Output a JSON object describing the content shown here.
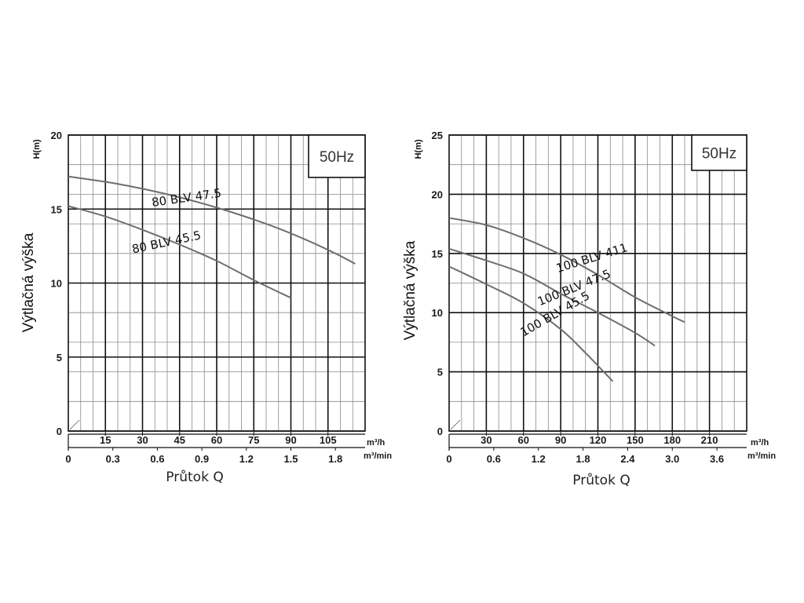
{
  "chart_data": [
    {
      "type": "line",
      "frequency_label": "50Hz",
      "ylabel": "Výtlačná výška",
      "ylabel_short": "H(m)",
      "xlabel": "Průtok Q",
      "x_unit_primary": "m³/h",
      "x_unit_secondary": "m³/min",
      "ylim": [
        0,
        20
      ],
      "y_ticks": [
        "0",
        "5",
        "10",
        "15",
        "20"
      ],
      "xlim_m3h": [
        0,
        120
      ],
      "x_ticks_m3h": [
        {
          "value": 15,
          "label": "15"
        },
        {
          "value": 30,
          "label": "30"
        },
        {
          "value": 45,
          "label": "45"
        },
        {
          "value": 60,
          "label": "60"
        },
        {
          "value": 75,
          "label": "75"
        },
        {
          "value": 90,
          "label": "90"
        },
        {
          "value": 105,
          "label": "105"
        }
      ],
      "x_ticks_m3min": [
        {
          "value": 0,
          "label": "0"
        },
        {
          "value": 0.3,
          "label": "0.3"
        },
        {
          "value": 0.6,
          "label": "0.6"
        },
        {
          "value": 0.9,
          "label": "0.9"
        },
        {
          "value": 1.2,
          "label": "1.2"
        },
        {
          "value": 1.5,
          "label": "1.5"
        },
        {
          "value": 1.8,
          "label": "1.8"
        }
      ],
      "grid": true,
      "series": [
        {
          "name": "80 BLV 47.5",
          "label_at": [
            48,
            15.5
          ],
          "label_angle": -8,
          "x": [
            0,
            20,
            40,
            60,
            80,
            95,
            108,
            116
          ],
          "y": [
            17.2,
            16.7,
            16.0,
            15.1,
            14.0,
            13.0,
            12.0,
            11.3
          ]
        },
        {
          "name": "80 BLV 45.5",
          "label_at": [
            40,
            12.5
          ],
          "label_angle": -12,
          "x": [
            0,
            15,
            30,
            45,
            60,
            75,
            90
          ],
          "y": [
            15.2,
            14.5,
            13.6,
            12.6,
            11.5,
            10.2,
            9.0
          ]
        }
      ]
    },
    {
      "type": "line",
      "frequency_label": "50Hz",
      "ylabel": "Výtlačná výška",
      "ylabel_short": "H(m)",
      "xlabel": "Průtok Q",
      "x_unit_primary": "m³/h",
      "x_unit_secondary": "m³/min",
      "ylim": [
        0,
        25
      ],
      "y_ticks": [
        "0",
        "5",
        "10",
        "15",
        "20",
        "25"
      ],
      "xlim_m3h": [
        0,
        240
      ],
      "x_ticks_m3h": [
        {
          "value": 30,
          "label": "30"
        },
        {
          "value": 60,
          "label": "60"
        },
        {
          "value": 90,
          "label": "90"
        },
        {
          "value": 120,
          "label": "120"
        },
        {
          "value": 150,
          "label": "150"
        },
        {
          "value": 180,
          "label": "180"
        },
        {
          "value": 210,
          "label": "210"
        }
      ],
      "x_ticks_m3min": [
        {
          "value": 0,
          "label": "0"
        },
        {
          "value": 0.6,
          "label": "0.6"
        },
        {
          "value": 1.2,
          "label": "1.2"
        },
        {
          "value": 1.8,
          "label": "1.8"
        },
        {
          "value": 2.4,
          "label": "2.4"
        },
        {
          "value": 3.0,
          "label": "3.0"
        },
        {
          "value": 3.6,
          "label": "3.6"
        }
      ],
      "grid": true,
      "series": [
        {
          "name": "100 BLV 411",
          "label_at": [
            116,
            14.3
          ],
          "label_angle": -17,
          "x": [
            0,
            30,
            60,
            90,
            120,
            150,
            180,
            190
          ],
          "y": [
            18.0,
            17.4,
            16.3,
            14.9,
            13.2,
            11.3,
            9.7,
            9.2
          ]
        },
        {
          "name": "100 BLV 47.5",
          "label_at": [
            102,
            11.8
          ],
          "label_angle": -22,
          "x": [
            0,
            30,
            60,
            90,
            120,
            150,
            166
          ],
          "y": [
            15.4,
            14.4,
            13.3,
            11.6,
            10.0,
            8.3,
            7.2
          ]
        },
        {
          "name": "100 BLV 45.5",
          "label_at": [
            87,
            9.6
          ],
          "label_angle": -30,
          "x": [
            0,
            30,
            60,
            90,
            110,
            132
          ],
          "y": [
            13.9,
            12.4,
            10.8,
            8.6,
            6.6,
            4.2
          ]
        }
      ]
    }
  ]
}
